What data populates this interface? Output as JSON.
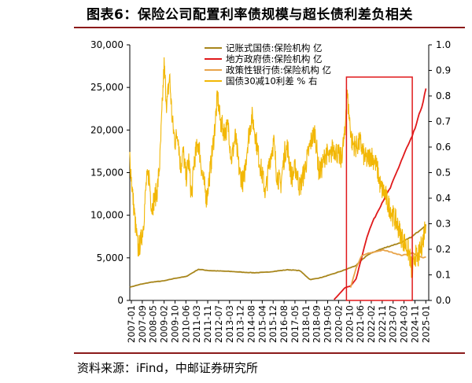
{
  "page": {
    "title": "图表6：保险公司配置利率债规模与超长债利差负相关",
    "source": "资料来源：iFind，中邮证券研究所"
  },
  "colors": {
    "accent_rule": "#8b1a1a",
    "highlight_box": "#e0191b"
  },
  "chart_data": {
    "type": "line",
    "x_tick_labels": [
      "2007-01",
      "2007-09",
      "2008-05",
      "2009-02",
      "2009-10",
      "2010-06",
      "2011-03",
      "2011-11",
      "2012-07",
      "2013-03",
      "2013-12",
      "2014-08",
      "2015-04",
      "2015-12",
      "2016-08",
      "2017-05",
      "2018-01",
      "2018-09",
      "2019-05",
      "2020-02",
      "2020-10",
      "2021-06",
      "2022-02",
      "2022-11",
      "2023-07",
      "2024-03",
      "2024-11",
      "2025-01"
    ],
    "y_left": {
      "range": [
        0,
        30000
      ],
      "ticks": [
        "0",
        "5,000",
        "10,000",
        "15,000",
        "20,000",
        "25,000",
        "30,000"
      ]
    },
    "y_right": {
      "range": [
        0,
        1.0
      ],
      "ticks": [
        "0.0",
        "0.1",
        "0.2",
        "0.3",
        "0.4",
        "0.5",
        "0.6",
        "0.7",
        "0.8",
        "0.9",
        "1.0"
      ]
    },
    "highlight_period": [
      "2020-03",
      "2024-03"
    ],
    "series": [
      {
        "name": "记账式国债:保险机构 亿",
        "color": "#a8861c",
        "axis": "left",
        "points": [
          [
            "2007-01",
            1550
          ],
          [
            "2007-09",
            1900
          ],
          [
            "2008-05",
            2150
          ],
          [
            "2009-02",
            2300
          ],
          [
            "2009-10",
            2600
          ],
          [
            "2010-06",
            2800
          ],
          [
            "2011-03",
            3650
          ],
          [
            "2011-11",
            3500
          ],
          [
            "2012-07",
            3450
          ],
          [
            "2013-03",
            3400
          ],
          [
            "2013-12",
            3300
          ],
          [
            "2014-08",
            3250
          ],
          [
            "2015-04",
            3300
          ],
          [
            "2015-12",
            3450
          ],
          [
            "2016-08",
            3600
          ],
          [
            "2017-05",
            3500
          ],
          [
            "2017-12",
            2500
          ],
          [
            "2018-01",
            2450
          ],
          [
            "2018-09",
            2700
          ],
          [
            "2019-05",
            3100
          ],
          [
            "2020-02",
            3600
          ],
          [
            "2020-10",
            4100
          ],
          [
            "2021-06",
            5300
          ],
          [
            "2022-02",
            5900
          ],
          [
            "2022-11",
            6400
          ],
          [
            "2023-07",
            6800
          ],
          [
            "2024-03",
            7500
          ],
          [
            "2024-11",
            8600
          ],
          [
            "2025-01",
            8900
          ]
        ]
      },
      {
        "name": "地方政府债:保险机构 亿",
        "color": "#e0191b",
        "axis": "left",
        "points": [
          [
            "2019-06",
            100
          ],
          [
            "2019-10",
            800
          ],
          [
            "2020-02",
            1500
          ],
          [
            "2020-06",
            1700
          ],
          [
            "2020-10",
            2500
          ],
          [
            "2021-02",
            5000
          ],
          [
            "2021-06",
            7500
          ],
          [
            "2021-10",
            9200
          ],
          [
            "2022-02",
            10500
          ],
          [
            "2022-06",
            11800
          ],
          [
            "2022-11",
            13200
          ],
          [
            "2023-03",
            14800
          ],
          [
            "2023-07",
            16400
          ],
          [
            "2023-11",
            17900
          ],
          [
            "2024-03",
            19200
          ],
          [
            "2024-07",
            21200
          ],
          [
            "2024-11",
            23400
          ],
          [
            "2025-01",
            24800
          ]
        ]
      },
      {
        "name": "政策性银行债:保险机构 亿",
        "color": "#e8a44a",
        "axis": "left",
        "points": [
          [
            "2020-06",
            1500
          ],
          [
            "2020-10",
            3800
          ],
          [
            "2021-02",
            5200
          ],
          [
            "2021-06",
            5500
          ],
          [
            "2021-10",
            5600
          ],
          [
            "2022-02",
            5800
          ],
          [
            "2022-06",
            5900
          ],
          [
            "2022-11",
            5700
          ],
          [
            "2023-03",
            5500
          ],
          [
            "2023-07",
            5300
          ],
          [
            "2023-11",
            5400
          ],
          [
            "2024-03",
            5600
          ],
          [
            "2024-07",
            5200
          ],
          [
            "2024-11",
            5000
          ],
          [
            "2025-01",
            5100
          ]
        ]
      },
      {
        "name": "国债30减10利差 % 右",
        "color": "#f2b705",
        "axis": "right",
        "points": [
          [
            "2007-01",
            0.56
          ],
          [
            "2007-03",
            0.42
          ],
          [
            "2007-05",
            0.3
          ],
          [
            "2007-07",
            0.2
          ],
          [
            "2007-09",
            0.23
          ],
          [
            "2007-11",
            0.3
          ],
          [
            "2008-01",
            0.46
          ],
          [
            "2008-03",
            0.49
          ],
          [
            "2008-05",
            0.36
          ],
          [
            "2008-07",
            0.4
          ],
          [
            "2008-09",
            0.43
          ],
          [
            "2008-11",
            0.55
          ],
          [
            "2009-01",
            0.8
          ],
          [
            "2009-02",
            0.92
          ],
          [
            "2009-04",
            0.76
          ],
          [
            "2009-06",
            0.88
          ],
          [
            "2009-08",
            0.7
          ],
          [
            "2009-10",
            0.62
          ],
          [
            "2009-12",
            0.66
          ],
          [
            "2010-02",
            0.52
          ],
          [
            "2010-04",
            0.58
          ],
          [
            "2010-06",
            0.48
          ],
          [
            "2010-08",
            0.55
          ],
          [
            "2010-10",
            0.4
          ],
          [
            "2010-12",
            0.55
          ],
          [
            "2011-03",
            0.62
          ],
          [
            "2011-06",
            0.49
          ],
          [
            "2011-09",
            0.4
          ],
          [
            "2011-11",
            0.48
          ],
          [
            "2012-02",
            0.62
          ],
          [
            "2012-05",
            0.8
          ],
          [
            "2012-07",
            0.7
          ],
          [
            "2012-10",
            0.66
          ],
          [
            "2013-01",
            0.68
          ],
          [
            "2013-03",
            0.55
          ],
          [
            "2013-06",
            0.64
          ],
          [
            "2013-09",
            0.5
          ],
          [
            "2013-12",
            0.46
          ],
          [
            "2014-03",
            0.62
          ],
          [
            "2014-06",
            0.72
          ],
          [
            "2014-08",
            0.67
          ],
          [
            "2014-11",
            0.56
          ],
          [
            "2015-02",
            0.48
          ],
          [
            "2015-04",
            0.42
          ],
          [
            "2015-07",
            0.55
          ],
          [
            "2015-10",
            0.62
          ],
          [
            "2015-12",
            0.5
          ],
          [
            "2016-03",
            0.45
          ],
          [
            "2016-06",
            0.58
          ],
          [
            "2016-08",
            0.6
          ],
          [
            "2016-11",
            0.48
          ],
          [
            "2017-02",
            0.52
          ],
          [
            "2017-05",
            0.44
          ],
          [
            "2017-08",
            0.5
          ],
          [
            "2017-11",
            0.57
          ],
          [
            "2018-01",
            0.62
          ],
          [
            "2018-04",
            0.66
          ],
          [
            "2018-07",
            0.5
          ],
          [
            "2018-09",
            0.52
          ],
          [
            "2018-12",
            0.58
          ],
          [
            "2019-03",
            0.55
          ],
          [
            "2019-05",
            0.6
          ],
          [
            "2019-08",
            0.58
          ],
          [
            "2019-11",
            0.55
          ],
          [
            "2020-01",
            0.62
          ],
          [
            "2020-02",
            0.65
          ],
          [
            "2020-03",
            0.83
          ],
          [
            "2020-05",
            0.72
          ],
          [
            "2020-07",
            0.62
          ],
          [
            "2020-10",
            0.6
          ],
          [
            "2021-01",
            0.62
          ],
          [
            "2021-04",
            0.56
          ],
          [
            "2021-06",
            0.55
          ],
          [
            "2021-09",
            0.57
          ],
          [
            "2021-12",
            0.54
          ],
          [
            "2022-02",
            0.5
          ],
          [
            "2022-04",
            0.44
          ],
          [
            "2022-07",
            0.42
          ],
          [
            "2022-09",
            0.38
          ],
          [
            "2022-11",
            0.36
          ],
          [
            "2023-01",
            0.33
          ],
          [
            "2023-04",
            0.3
          ],
          [
            "2023-07",
            0.25
          ],
          [
            "2023-10",
            0.22
          ],
          [
            "2024-01",
            0.18
          ],
          [
            "2024-03",
            0.1
          ],
          [
            "2024-05",
            0.18
          ],
          [
            "2024-07",
            0.16
          ],
          [
            "2024-09",
            0.2
          ],
          [
            "2024-11",
            0.24
          ],
          [
            "2025-01",
            0.32
          ]
        ]
      }
    ]
  }
}
